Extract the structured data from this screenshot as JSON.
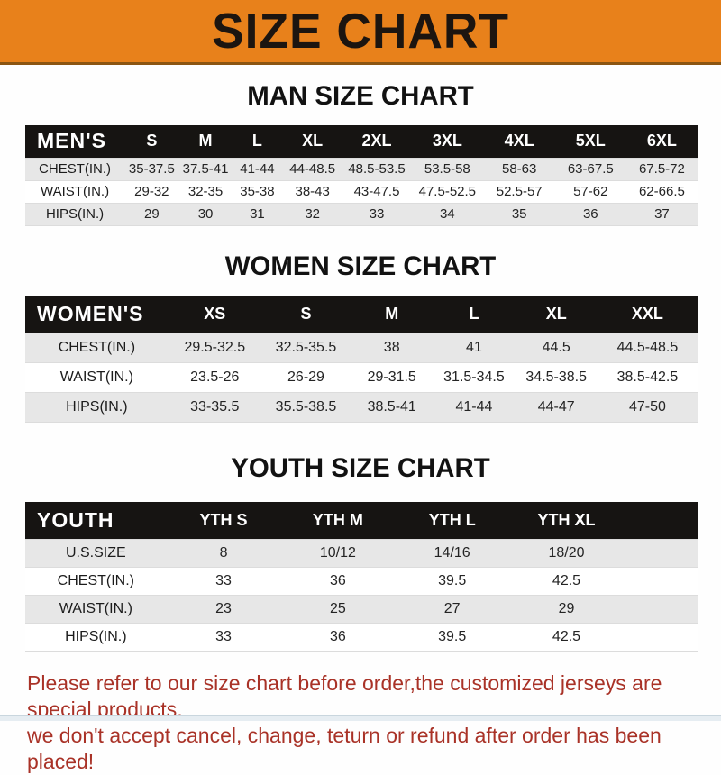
{
  "banner": {
    "title": "SIZE CHART"
  },
  "colors": {
    "banner_bg": "#E8811B",
    "banner_text": "#1C1510",
    "header_bar_bg": "#161412",
    "header_bar_text": "#FFFFFF",
    "row_alt_bg": "#E7E7E7",
    "footer_text": "#A93227"
  },
  "sections": [
    {
      "title": "MAN SIZE CHART",
      "table": {
        "header": [
          "MEN'S",
          "S",
          "M",
          "L",
          "XL",
          "2XL",
          "3XL",
          "4XL",
          "5XL",
          "6XL"
        ],
        "rows": [
          {
            "label": "CHEST(IN.)",
            "values": [
              "35-37.5",
              "37.5-41",
              "41-44",
              "44-48.5",
              "48.5-53.5",
              "53.5-58",
              "58-63",
              "63-67.5",
              "67.5-72"
            ]
          },
          {
            "label": "WAIST(IN.)",
            "values": [
              "29-32",
              "32-35",
              "35-38",
              "38-43",
              "43-47.5",
              "47.5-52.5",
              "52.5-57",
              "57-62",
              "62-66.5"
            ]
          },
          {
            "label": "HIPS(IN.)",
            "values": [
              "29",
              "30",
              "31",
              "32",
              "33",
              "34",
              "35",
              "36",
              "37"
            ]
          }
        ]
      }
    },
    {
      "title": "WOMEN SIZE CHART",
      "table": {
        "header": [
          "WOMEN'S",
          "XS",
          "S",
          "M",
          "L",
          "XL",
          "XXL"
        ],
        "rows": [
          {
            "label": "CHEST(IN.)",
            "values": [
              "29.5-32.5",
              "32.5-35.5",
              "38",
              "41",
              "44.5",
              "44.5-48.5"
            ]
          },
          {
            "label": "WAIST(IN.)",
            "values": [
              "23.5-26",
              "26-29",
              "29-31.5",
              "31.5-34.5",
              "34.5-38.5",
              "38.5-42.5"
            ]
          },
          {
            "label": "HIPS(IN.)",
            "values": [
              "33-35.5",
              "35.5-38.5",
              "38.5-41",
              "41-44",
              "44-47",
              "47-50"
            ]
          }
        ]
      }
    },
    {
      "title": "YOUTH SIZE CHART",
      "table": {
        "header": [
          "YOUTH",
          "YTH S",
          "YTH M",
          "YTH L",
          "YTH XL"
        ],
        "rows": [
          {
            "label": "U.S.SIZE",
            "values": [
              "8",
              "10/12",
              "14/16",
              "18/20"
            ]
          },
          {
            "label": "CHEST(IN.)",
            "values": [
              "33",
              "36",
              "39.5",
              "42.5"
            ]
          },
          {
            "label": "WAIST(IN.)",
            "values": [
              "23",
              "25",
              "27",
              "29"
            ]
          },
          {
            "label": "HIPS(IN.)",
            "values": [
              "33",
              "36",
              "39.5",
              "42.5"
            ]
          }
        ]
      }
    }
  ],
  "footer": {
    "line1": "Please refer to our size chart before order,the customized jerseys are special products,",
    "line2": "we don't accept cancel, change, teturn or refund after order has been placed!"
  }
}
